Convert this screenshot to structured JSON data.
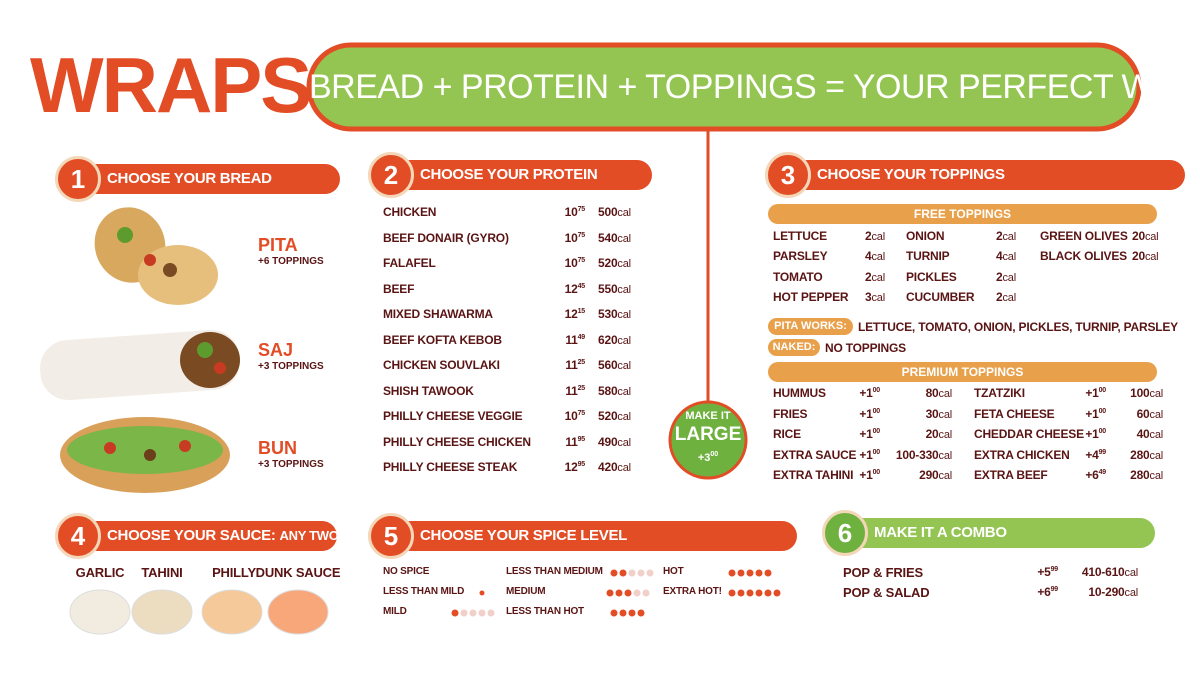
{
  "header": {
    "title": "WRAPS",
    "tagline": "BREAD + PROTEIN + TOPPINGS = YOUR PERFECT WRAP"
  },
  "calorie_unit": "cal",
  "bread": {
    "number": "1",
    "heading": "CHOOSE YOUR BREAD",
    "items": [
      {
        "name": "PITA",
        "note": "+6 TOPPINGS"
      },
      {
        "name": "SAJ",
        "note": "+3 TOPPINGS"
      },
      {
        "name": "BUN",
        "note": "+3 TOPPINGS"
      }
    ]
  },
  "protein": {
    "number": "2",
    "heading": "CHOOSE YOUR PROTEIN",
    "items": [
      {
        "name": "CHICKEN",
        "dollars": "10",
        "cents": "75",
        "calories": "500"
      },
      {
        "name": "BEEF DONAIR (GYRO)",
        "dollars": "10",
        "cents": "75",
        "calories": "540"
      },
      {
        "name": "FALAFEL",
        "dollars": "10",
        "cents": "75",
        "calories": "520"
      },
      {
        "name": "BEEF",
        "dollars": "12",
        "cents": "45",
        "calories": "550"
      },
      {
        "name": "MIXED SHAWARMA",
        "dollars": "12",
        "cents": "15",
        "calories": "530"
      },
      {
        "name": "BEEF KOFTA KEBOB",
        "dollars": "11",
        "cents": "49",
        "calories": "620"
      },
      {
        "name": "CHICKEN SOUVLAKI",
        "dollars": "11",
        "cents": "25",
        "calories": "560"
      },
      {
        "name": "SHISH TAWOOK",
        "dollars": "11",
        "cents": "25",
        "calories": "580"
      },
      {
        "name": "PHILLY CHEESE VEGGIE",
        "dollars": "10",
        "cents": "75",
        "calories": "520"
      },
      {
        "name": "PHILLY CHEESE CHICKEN",
        "dollars": "11",
        "cents": "95",
        "calories": "490"
      },
      {
        "name": "PHILLY CHEESE STEAK",
        "dollars": "12",
        "cents": "95",
        "calories": "420"
      }
    ]
  },
  "large": {
    "line1": "MAKE IT",
    "line2": "LARGE",
    "dollars": "+3",
    "cents": "00"
  },
  "toppings": {
    "number": "3",
    "heading": "CHOOSE YOUR TOPPINGS",
    "free_heading": "FREE TOPPINGS",
    "free_columns": [
      [
        {
          "name": "LETTUCE",
          "calories": "2"
        },
        {
          "name": "PARSLEY",
          "calories": "4"
        },
        {
          "name": "TOMATO",
          "calories": "2"
        },
        {
          "name": "HOT PEPPER",
          "calories": "3"
        }
      ],
      [
        {
          "name": "ONION",
          "calories": "2"
        },
        {
          "name": "TURNIP",
          "calories": "4"
        },
        {
          "name": "PICKLES",
          "calories": "2"
        },
        {
          "name": "CUCUMBER",
          "calories": "2"
        }
      ],
      [
        {
          "name": "GREEN OLIVES",
          "calories": "20"
        },
        {
          "name": "BLACK OLIVES",
          "calories": "20"
        }
      ]
    ],
    "pita_works": {
      "label": "PITA WORKS:",
      "text": "LETTUCE, TOMATO, ONION, PICKLES, TURNIP, PARSLEY"
    },
    "naked": {
      "label": "NAKED:",
      "text": "NO TOPPINGS"
    },
    "premium_heading": "PREMIUM TOPPINGS",
    "premium_columns": [
      [
        {
          "name": "HUMMUS",
          "dollars": "+1",
          "cents": "00",
          "calories": "80"
        },
        {
          "name": "FRIES",
          "dollars": "+1",
          "cents": "00",
          "calories": "30"
        },
        {
          "name": "RICE",
          "dollars": "+1",
          "cents": "00",
          "calories": "20"
        },
        {
          "name": "EXTRA SAUCE",
          "dollars": "+1",
          "cents": "00",
          "calories": "100-330"
        },
        {
          "name": "EXTRA TAHINI",
          "dollars": "+1",
          "cents": "00",
          "calories": "290"
        }
      ],
      [
        {
          "name": "TZATZIKI",
          "dollars": "+1",
          "cents": "00",
          "calories": "100"
        },
        {
          "name": "FETA CHEESE",
          "dollars": "+1",
          "cents": "00",
          "calories": "60"
        },
        {
          "name": "CHEDDAR CHEESE",
          "dollars": "+1",
          "cents": "00",
          "calories": "40"
        },
        {
          "name": "EXTRA CHICKEN",
          "dollars": "+4",
          "cents": "99",
          "calories": "280"
        },
        {
          "name": "EXTRA BEEF",
          "dollars": "+6",
          "cents": "49",
          "calories": "280"
        }
      ]
    ]
  },
  "sauce": {
    "number": "4",
    "heading": "CHOOSE YOUR SAUCE:",
    "heading_extra": "ANY TWO",
    "items": [
      "GARLIC",
      "TAHINI",
      "PHILLY",
      "DUNK SAUCE"
    ]
  },
  "spice": {
    "number": "5",
    "heading": "CHOOSE YOUR SPICE LEVEL",
    "levels": [
      "NO SPICE",
      "LESS THAN MILD",
      "MILD",
      "LESS THAN MEDIUM",
      "MEDIUM",
      "LESS THAN HOT",
      "HOT",
      "EXTRA HOT!"
    ]
  },
  "combo": {
    "number": "6",
    "heading": "MAKE IT A COMBO",
    "items": [
      {
        "name": "POP & FRIES",
        "dollars": "+5",
        "cents": "99",
        "calories": "410-610"
      },
      {
        "name": "POP & SALAD",
        "dollars": "+6",
        "cents": "99",
        "calories": "10-290"
      }
    ]
  }
}
